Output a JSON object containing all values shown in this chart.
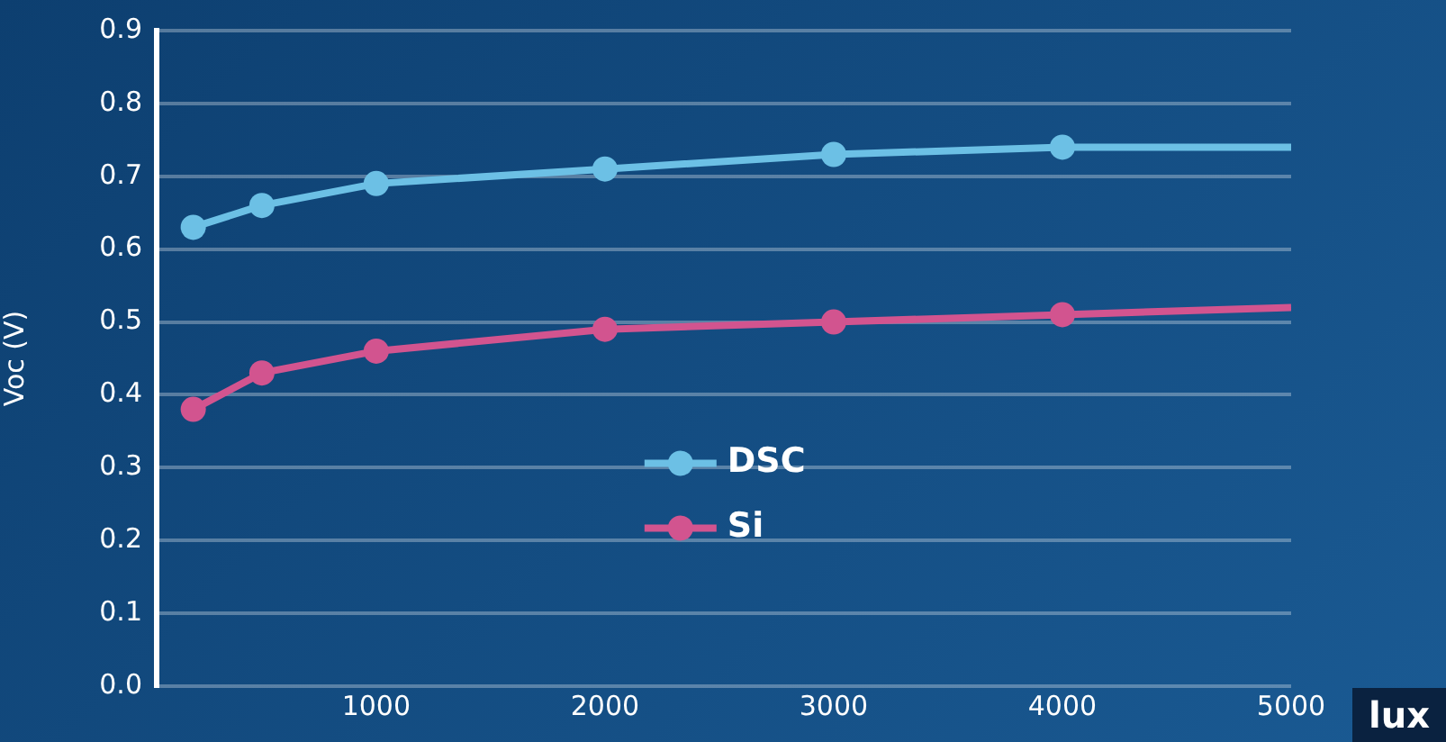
{
  "chart_data": {
    "type": "line",
    "xlabel": "lux",
    "ylabel": "Voc (V)",
    "x": [
      200,
      500,
      1000,
      2000,
      3000,
      4000,
      5000
    ],
    "series": [
      {
        "name": "DSC",
        "color": "#6cc0e5",
        "values": [
          0.63,
          0.66,
          0.69,
          0.71,
          0.73,
          0.74,
          0.74
        ]
      },
      {
        "name": "Si",
        "color": "#d2548f",
        "values": [
          0.38,
          0.43,
          0.46,
          0.49,
          0.5,
          0.51,
          0.52
        ]
      }
    ],
    "xlim": [
      40,
      5000
    ],
    "xticks": [
      1000,
      2000,
      3000,
      4000,
      5000
    ],
    "ylim": [
      0,
      0.9
    ],
    "yticks": [
      {
        "value": 0,
        "label": "0.0"
      },
      0.1,
      0.2,
      0.3,
      0.4,
      0.5,
      0.6,
      0.7,
      0.8,
      0.9
    ],
    "grid": "y",
    "legend": "center",
    "marker": "circle",
    "line_style": "solid"
  }
}
